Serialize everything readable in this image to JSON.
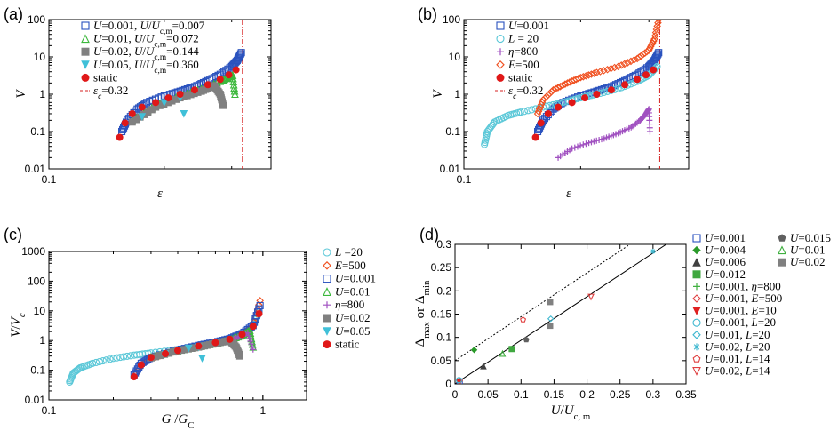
{
  "chart_data": [
    {
      "type": "scatter",
      "panel_label": "(a)",
      "xlabel": "ε",
      "ylabel": "V",
      "x_scale": "log",
      "y_scale": "log",
      "xlim": [
        0.1,
        0.38
      ],
      "ylim": [
        0.01,
        100
      ],
      "x_ticks": [
        "0.1"
      ],
      "y_ticks": [
        "0.01",
        "0.1",
        "1",
        "10",
        "100"
      ],
      "legend_position": "top-left",
      "vline": {
        "x": 0.32,
        "color": "#d62020",
        "style": "dash-dot"
      },
      "series": [
        {
          "name": "U=0.001, U/Uc,m=0.007",
          "marker": "square-open",
          "color": "#2a52be",
          "x": [
            0.155,
            0.16,
            0.17,
            0.18,
            0.2,
            0.22,
            0.24,
            0.26,
            0.28,
            0.3,
            0.31,
            0.318
          ],
          "y": [
            0.1,
            0.2,
            0.4,
            0.6,
            0.9,
            1.2,
            1.6,
            2.3,
            3.4,
            5.5,
            8,
            13
          ]
        },
        {
          "name": "U=0.01, U/Uc,m=0.072",
          "marker": "triangle-open",
          "color": "#3cb83c",
          "x": [
            0.165,
            0.19,
            0.22,
            0.25,
            0.28,
            0.295,
            0.302,
            0.306
          ],
          "y": [
            0.2,
            0.5,
            0.9,
            1.4,
            2.2,
            2.9,
            3.2,
            1.0
          ]
        },
        {
          "name": "U=0.02, U/Uc,m=0.144",
          "marker": "square-filled",
          "color": "#808080",
          "x": [
            0.165,
            0.19,
            0.22,
            0.25,
            0.27,
            0.28,
            0.285
          ],
          "y": [
            0.18,
            0.45,
            0.8,
            1.2,
            1.7,
            1.0,
            0.5
          ]
        },
        {
          "name": "U=0.05, U/Uc,m=0.360",
          "marker": "triangle-down-filled",
          "color": "#40c0d8",
          "x": [
            0.175,
            0.2,
            0.22,
            0.225
          ],
          "y": [
            0.25,
            0.6,
            0.8,
            0.3
          ]
        },
        {
          "name": "static",
          "marker": "circle-filled",
          "color": "#e01818",
          "x": [
            0.153,
            0.158,
            0.165,
            0.175,
            0.19,
            0.205,
            0.22,
            0.24,
            0.26,
            0.28,
            0.295,
            0.308
          ],
          "y": [
            0.07,
            0.17,
            0.3,
            0.45,
            0.6,
            0.8,
            1.0,
            1.3,
            1.8,
            2.5,
            3.3,
            4.5
          ]
        }
      ],
      "legend_extra": "εc=0.32"
    },
    {
      "type": "scatter",
      "panel_label": "(b)",
      "xlabel": "ε",
      "ylabel": "V",
      "x_scale": "log",
      "y_scale": "log",
      "xlim": [
        0.1,
        0.38
      ],
      "ylim": [
        0.01,
        100
      ],
      "x_ticks": [
        "0.1"
      ],
      "y_ticks": [
        "0.01",
        "0.1",
        "1",
        "10",
        "100"
      ],
      "legend_position": "top-left",
      "vline": {
        "x": 0.32,
        "color": "#d62020",
        "style": "dash-dot"
      },
      "series": [
        {
          "name": "U=0.001",
          "marker": "square-open",
          "color": "#2a52be",
          "x": [
            0.155,
            0.16,
            0.17,
            0.18,
            0.2,
            0.22,
            0.24,
            0.26,
            0.28,
            0.3,
            0.31,
            0.318
          ],
          "y": [
            0.1,
            0.2,
            0.4,
            0.6,
            0.9,
            1.2,
            1.6,
            2.3,
            3.4,
            5.5,
            8,
            13
          ]
        },
        {
          "name": "L = 20",
          "marker": "circle-open",
          "color": "#5cc8d8",
          "x": [
            0.113,
            0.115,
            0.12,
            0.13,
            0.14,
            0.16,
            0.18,
            0.2,
            0.22,
            0.25,
            0.28,
            0.3,
            0.315
          ],
          "y": [
            0.045,
            0.1,
            0.18,
            0.27,
            0.33,
            0.45,
            0.6,
            0.8,
            1.0,
            1.4,
            2.2,
            3.2,
            5.5
          ]
        },
        {
          "name": "η=800",
          "marker": "plus",
          "color": "#a050c0",
          "x": [
            0.175,
            0.19,
            0.21,
            0.23,
            0.25,
            0.27,
            0.285,
            0.295,
            0.3,
            0.302
          ],
          "y": [
            0.02,
            0.035,
            0.05,
            0.065,
            0.09,
            0.13,
            0.2,
            0.3,
            0.4,
            0.1
          ]
        },
        {
          "name": "E=500",
          "marker": "diamond-open",
          "color": "#f05020",
          "x": [
            0.155,
            0.16,
            0.17,
            0.185,
            0.2,
            0.22,
            0.25,
            0.28,
            0.3,
            0.31,
            0.318
          ],
          "y": [
            0.3,
            0.7,
            1.3,
            2.0,
            2.8,
            3.8,
            5.5,
            9,
            15,
            30,
            100
          ]
        },
        {
          "name": "static",
          "marker": "circle-filled",
          "color": "#e01818",
          "x": [
            0.153,
            0.158,
            0.165,
            0.175,
            0.19,
            0.205,
            0.22,
            0.24,
            0.26,
            0.28,
            0.295,
            0.308
          ],
          "y": [
            0.07,
            0.17,
            0.3,
            0.45,
            0.6,
            0.8,
            1.0,
            1.3,
            1.8,
            2.5,
            3.3,
            4.5
          ]
        }
      ],
      "legend_extra": "εc=0.32"
    },
    {
      "type": "scatter",
      "panel_label": "(c)",
      "xlabel": "G /GC",
      "ylabel": "V/Vc",
      "x_scale": "log",
      "y_scale": "log",
      "xlim": [
        0.1,
        1.6
      ],
      "ylim": [
        0.01,
        1000
      ],
      "x_ticks": [
        "0.1",
        "1"
      ],
      "y_ticks": [
        "0.01",
        "0.1",
        "1",
        "10",
        "100",
        "1000"
      ],
      "legend_position": "right",
      "series": [
        {
          "name": "L =20",
          "marker": "circle-open",
          "color": "#5cc8d8",
          "x": [
            0.125,
            0.13,
            0.14,
            0.16,
            0.2,
            0.25,
            0.3,
            0.4,
            0.5,
            0.6,
            0.7,
            0.8,
            0.9,
            0.96
          ],
          "y": [
            0.04,
            0.08,
            0.12,
            0.17,
            0.25,
            0.32,
            0.38,
            0.5,
            0.65,
            0.85,
            1.1,
            1.6,
            3,
            9
          ]
        },
        {
          "name": "E=500",
          "marker": "diamond-open",
          "color": "#f05020",
          "x": [
            0.25,
            0.27,
            0.3,
            0.4,
            0.5,
            0.6,
            0.7,
            0.8,
            0.9,
            0.97
          ],
          "y": [
            0.06,
            0.15,
            0.25,
            0.45,
            0.65,
            0.85,
            1.1,
            1.6,
            3,
            22
          ]
        },
        {
          "name": "U=0.001",
          "marker": "square-open",
          "color": "#2a52be",
          "x": [
            0.25,
            0.27,
            0.3,
            0.4,
            0.5,
            0.6,
            0.7,
            0.8,
            0.9,
            0.97
          ],
          "y": [
            0.07,
            0.17,
            0.27,
            0.48,
            0.68,
            0.88,
            1.15,
            1.7,
            3.2,
            15
          ]
        },
        {
          "name": "U=0.01",
          "marker": "triangle-open",
          "color": "#3cb83c",
          "x": [
            0.3,
            0.4,
            0.5,
            0.6,
            0.7,
            0.8,
            0.87,
            0.9
          ],
          "y": [
            0.28,
            0.45,
            0.62,
            0.8,
            1.05,
            1.5,
            2.2,
            0.6
          ]
        },
        {
          "name": "η=800",
          "marker": "plus",
          "color": "#a050c0",
          "x": [
            0.35,
            0.45,
            0.55,
            0.65,
            0.75,
            0.85,
            0.9
          ],
          "y": [
            0.35,
            0.55,
            0.7,
            0.9,
            1.2,
            1.8,
            0.5
          ]
        },
        {
          "name": "U=0.02",
          "marker": "square-filled",
          "color": "#808080",
          "x": [
            0.3,
            0.4,
            0.5,
            0.6,
            0.7,
            0.75,
            0.78
          ],
          "y": [
            0.26,
            0.45,
            0.6,
            0.8,
            1.0,
            0.6,
            0.3
          ]
        },
        {
          "name": "U=0.05",
          "marker": "triangle-down-filled",
          "color": "#40c0d8",
          "x": [
            0.35,
            0.45,
            0.5,
            0.52
          ],
          "y": [
            0.35,
            0.55,
            0.6,
            0.25
          ]
        },
        {
          "name": "static",
          "marker": "circle-filled",
          "color": "#e01818",
          "x": [
            0.25,
            0.27,
            0.3,
            0.35,
            0.4,
            0.5,
            0.6,
            0.7,
            0.8,
            0.9,
            0.96
          ],
          "y": [
            0.06,
            0.15,
            0.27,
            0.36,
            0.46,
            0.65,
            0.85,
            1.1,
            1.6,
            3,
            8
          ]
        }
      ]
    },
    {
      "type": "scatter",
      "panel_label": "(d)",
      "xlabel": "U/Uc, m",
      "ylabel": "Δmax or Δmin",
      "xlim": [
        0,
        0.35
      ],
      "ylim": [
        0,
        0.3
      ],
      "x_ticks": [
        "0",
        "0.05",
        "0.1",
        "0.15",
        "0.2",
        "0.25",
        "0.3",
        "0.35"
      ],
      "y_ticks": [
        "0",
        "0.05",
        "0.1",
        "0.15",
        "0.2",
        "0.25",
        "0.3"
      ],
      "legend_position": "right",
      "lines": [
        {
          "style": "solid",
          "x": [
            0,
            0.32
          ],
          "y": [
            0,
            0.3
          ]
        },
        {
          "style": "dotted",
          "x": [
            0,
            0.265
          ],
          "y": [
            0.05,
            0.3
          ]
        }
      ],
      "series": [
        {
          "name": "U=0.001",
          "marker": "square-open",
          "color": "#2a52be",
          "x": [
            0.007
          ],
          "y": [
            0.005
          ]
        },
        {
          "name": "U=0.004",
          "marker": "diamond-filled",
          "color": "#2a9a2a",
          "x": [
            0.029
          ],
          "y": [
            0.073
          ]
        },
        {
          "name": "U=0.006",
          "marker": "triangle-filled",
          "color": "#404040",
          "x": [
            0.043
          ],
          "y": [
            0.038
          ]
        },
        {
          "name": "U=0.012",
          "marker": "square-filled",
          "color": "#40a840",
          "x": [
            0.086
          ],
          "y": [
            0.075
          ]
        },
        {
          "name": "U=0.001, η=800",
          "marker": "plus",
          "color": "#40b040",
          "x": [
            0.007
          ],
          "y": [
            0.006
          ]
        },
        {
          "name": "U=0.001, E=500",
          "marker": "diamond-open",
          "color": "#e04040",
          "x": [
            0.007
          ],
          "y": [
            0.007
          ]
        },
        {
          "name": "U=0.001, E=10",
          "marker": "triangle-down-filled",
          "color": "#e02020",
          "x": [
            0.007
          ],
          "y": [
            0.004
          ]
        },
        {
          "name": "U=0.001, L=20",
          "marker": "circle-open",
          "color": "#40b8d0",
          "x": [
            0.006
          ],
          "y": [
            0.008
          ]
        },
        {
          "name": "U=0.01, L=20",
          "marker": "diamond-open",
          "color": "#40b8d0",
          "x": [
            0.145
          ],
          "y": [
            0.14
          ]
        },
        {
          "name": "U=0.02, L=20",
          "marker": "asterisk",
          "color": "#40b8d0",
          "x": [
            0.3
          ],
          "y": [
            0.285
          ]
        },
        {
          "name": "U=0.01, L=14",
          "marker": "pentagon-open",
          "color": "#e04040",
          "x": [
            0.103
          ],
          "y": [
            0.138
          ]
        },
        {
          "name": "U=0.02, L=14",
          "marker": "triangle-down-open",
          "color": "#e04040",
          "x": [
            0.206
          ],
          "y": [
            0.187
          ]
        },
        {
          "name": "U=0.015",
          "marker": "pentagon-filled",
          "color": "#606060",
          "x": [
            0.108
          ],
          "y": [
            0.095
          ]
        },
        {
          "name": "U=0.01",
          "marker": "triangle-open",
          "color": "#40b040",
          "x": [
            0.072
          ],
          "y": [
            0.065
          ]
        },
        {
          "name": "U=0.02",
          "marker": "square-filled",
          "color": "#808080",
          "x": [
            0.144,
            0.144
          ],
          "y": [
            0.125,
            0.176
          ]
        }
      ]
    }
  ]
}
